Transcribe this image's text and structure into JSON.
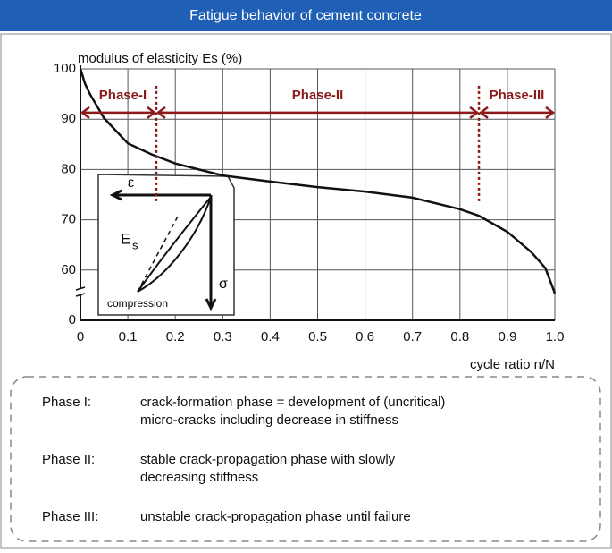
{
  "header": {
    "title": "Fatigue behavior of cement concrete"
  },
  "chart_data": {
    "type": "line",
    "y_label": "modulus of elasticity Es (%)",
    "x_label": "cycle ratio n/N",
    "x": [
      0,
      0.01,
      0.02,
      0.05,
      0.1,
      0.15,
      0.2,
      0.3,
      0.4,
      0.5,
      0.6,
      0.7,
      0.8,
      0.84,
      0.9,
      0.95,
      0.98,
      1.0
    ],
    "series": [
      {
        "color": "#111111",
        "values": [
          100,
          97,
          95,
          90.2,
          85.2,
          83,
          81.2,
          78.8,
          77.6,
          76.5,
          75.6,
          74.4,
          72.1,
          70.8,
          67.6,
          63.6,
          60.4,
          55.4
        ]
      }
    ],
    "xlim": [
      0,
      1
    ],
    "xticks": [
      0,
      0.1,
      0.2,
      0.3,
      0.4,
      0.5,
      0.6,
      0.7,
      0.8,
      0.9,
      {
        "value": 1,
        "label": "1.0"
      }
    ],
    "ylim": [
      0,
      100
    ],
    "yticks": [
      0,
      60,
      70,
      80,
      90,
      100
    ],
    "broken_axis": true,
    "grid": true,
    "phases": [
      {
        "label": "Phase-I",
        "start": 0,
        "end": 0.16
      },
      {
        "label": "Phase-II",
        "start": 0.16,
        "end": 0.84
      },
      {
        "label": "Phase-III",
        "start": 0.84,
        "end": 1
      }
    ],
    "phase_arrow_y": 91.3,
    "phase_color": "#8b1a1a",
    "inset": {
      "strain": "ε",
      "modulus": "E",
      "modulus_sub": "s",
      "stress": "σ",
      "note": "compression"
    }
  },
  "description": [
    {
      "term": "Phase I:",
      "lines": [
        "crack-formation phase = development of (uncritical)",
        "micro-cracks including decrease in stiffness"
      ]
    },
    {
      "term": "Phase II:",
      "lines": [
        "stable crack-propagation phase with slowly",
        "decreasing stiffness"
      ]
    },
    {
      "term": "Phase III:",
      "lines": [
        "unstable crack-propagation phase until failure"
      ]
    }
  ]
}
